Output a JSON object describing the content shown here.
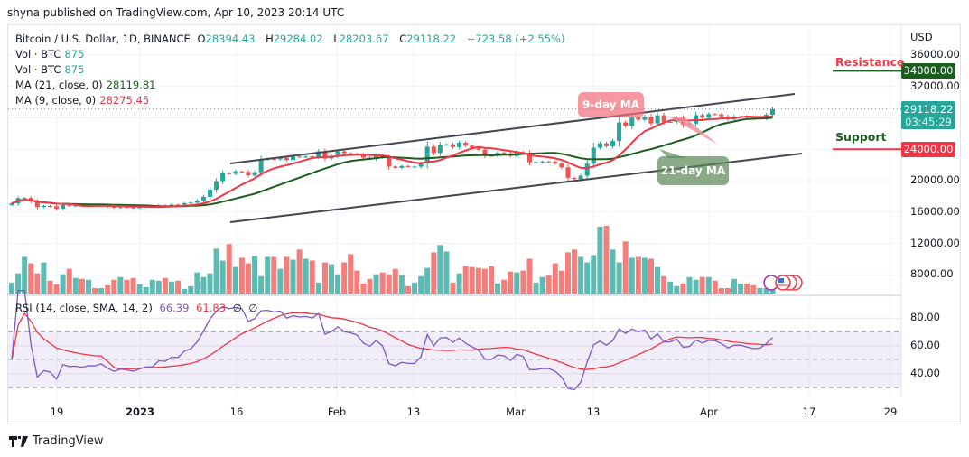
{
  "header": {
    "published": "shyna published on TradingView.com, Apr 10, 2023 20:14 UTC"
  },
  "legend": {
    "symbol": "Bitcoin / U.S. Dollar, 1D, BINANCE",
    "open_label": "O",
    "open": "28394.43",
    "high_label": "H",
    "high": "29284.02",
    "low_label": "L",
    "low": "28203.67",
    "close_label": "C",
    "close": "29118.22",
    "change": "+723.58 (+2.55%)",
    "vol1_label": "Vol · BTC",
    "vol1": "875",
    "vol2_label": "Vol · BTC",
    "vol2": "875",
    "ma21_label": "MA (21, close, 0)",
    "ma21": "28119.81",
    "ma9_label": "MA (9, close, 0)",
    "ma9": "28275.45",
    "rsi_label": "RSI (14, close, SMA, 14, 2)",
    "rsi": "66.39",
    "rsi_sma": "61.83",
    "rsi_extra1": "∅",
    "rsi_extra2": "∅"
  },
  "price_axis": {
    "currency": "USD",
    "ticks": [
      "36000.00",
      "32000.00",
      "20000.00",
      "16000.00",
      "12000.00",
      "8000.00"
    ]
  },
  "rsi_axis": {
    "ticks": [
      "80.00",
      "60.00",
      "40.00"
    ]
  },
  "time_axis": {
    "ticks": [
      "19",
      "2023",
      "16",
      "Feb",
      "13",
      "Mar",
      "13",
      "Apr",
      "17",
      "29"
    ]
  },
  "tags": {
    "current_price": "29118.22",
    "countdown": "03:45:29",
    "resistance_price": "34000.00",
    "support_price": "24000.00"
  },
  "annotations": {
    "resistance": "Resistance",
    "support": "Support",
    "ma9_callout": "9-day MA",
    "ma21_callout": "21-day MA"
  },
  "footer": {
    "brand": "TradingView"
  },
  "colors": {
    "up": "#26a69a",
    "down": "#ef5350",
    "ma9": "#f23645",
    "ma21": "#1b5e20",
    "rsi": "#7e57c2",
    "rsi_sma": "#f23645",
    "resistance": "#1b5e20",
    "support": "#f23645"
  },
  "chart_data": {
    "type": "candlestick",
    "start_date": "2022-12-12",
    "interval": "1D",
    "ylim": [
      6000,
      37000
    ],
    "close": [
      17100,
      17780,
      17800,
      17360,
      16630,
      16780,
      16740,
      16440,
      16900,
      16820,
      16830,
      16780,
      16840,
      16830,
      16920,
      16710,
      16550,
      16630,
      16600,
      16540,
      16610,
      16670,
      16670,
      16850,
      16830,
      16950,
      16940,
      17130,
      17200,
      17440,
      17940,
      18850,
      19930,
      20950,
      20880,
      21180,
      21130,
      20680,
      21070,
      22670,
      22780,
      22710,
      22920,
      22630,
      23060,
      23010,
      23080,
      23030,
      23740,
      22830,
      23130,
      23730,
      23490,
      23430,
      23330,
      22930,
      22760,
      23240,
      22960,
      21800,
      21630,
      21860,
      21780,
      21780,
      22200,
      24330,
      23520,
      24570,
      24630,
      24280,
      24840,
      24450,
      24190,
      23940,
      23170,
      23150,
      23550,
      23490,
      23140,
      23630,
      23470,
      22350,
      22350,
      22430,
      22410,
      22200,
      21700,
      20360,
      20190,
      20630,
      22160,
      24200,
      24750,
      24380,
      25050,
      27420,
      26970,
      28040,
      27770,
      28170,
      27300,
      28330,
      27480,
      27490,
      28000,
      27140,
      27270,
      28350,
      28030,
      28480,
      28450,
      28200,
      27800,
      28170,
      28170,
      28030,
      27910,
      27950,
      28394.43,
      29118.22
    ],
    "volume": [
      2630,
      4820,
      8760,
      7230,
      4820,
      7450,
      3070,
      2190,
      4600,
      5910,
      3720,
      3500,
      3290,
      1310,
      1310,
      1970,
      3290,
      3940,
      3290,
      3720,
      2190,
      1530,
      3290,
      3070,
      3720,
      2850,
      3070,
      1100,
      1750,
      5040,
      3940,
      4820,
      10730,
      7880,
      11830,
      6350,
      8540,
      7230,
      8980,
      4160,
      8760,
      8760,
      5910,
      8760,
      8100,
      10510,
      8320,
      7880,
      2630,
      7450,
      7010,
      4600,
      7450,
      9420,
      5480,
      2410,
      3500,
      4600,
      5040,
      4600,
      5910,
      4380,
      1750,
      2630,
      4160,
      6130,
      9860,
      11610,
      10070,
      2630,
      4820,
      6570,
      6350,
      6130,
      5910,
      6570,
      2410,
      3290,
      5260,
      5040,
      5480,
      8320,
      2630,
      3940,
      4380,
      7230,
      5480,
      9860,
      10510,
      8760,
      7450,
      9200,
      15990,
      16210,
      10510,
      7450,
      12480,
      8540,
      8760,
      8540,
      8320,
      6350,
      4160,
      2850,
      1750,
      2410,
      3940,
      3290,
      3940,
      3940,
      3070,
      1310,
      1310,
      3500,
      2410,
      2410,
      1970,
      1310,
      1310,
      875
    ],
    "indicators": [
      "MA 9",
      "MA 21",
      "RSI 14 with SMA 14"
    ],
    "resistance": 34000,
    "support": 24000,
    "rsi_levels": [
      30,
      50,
      70
    ],
    "rsi_ylim": [
      25,
      90
    ],
    "grid": true
  }
}
